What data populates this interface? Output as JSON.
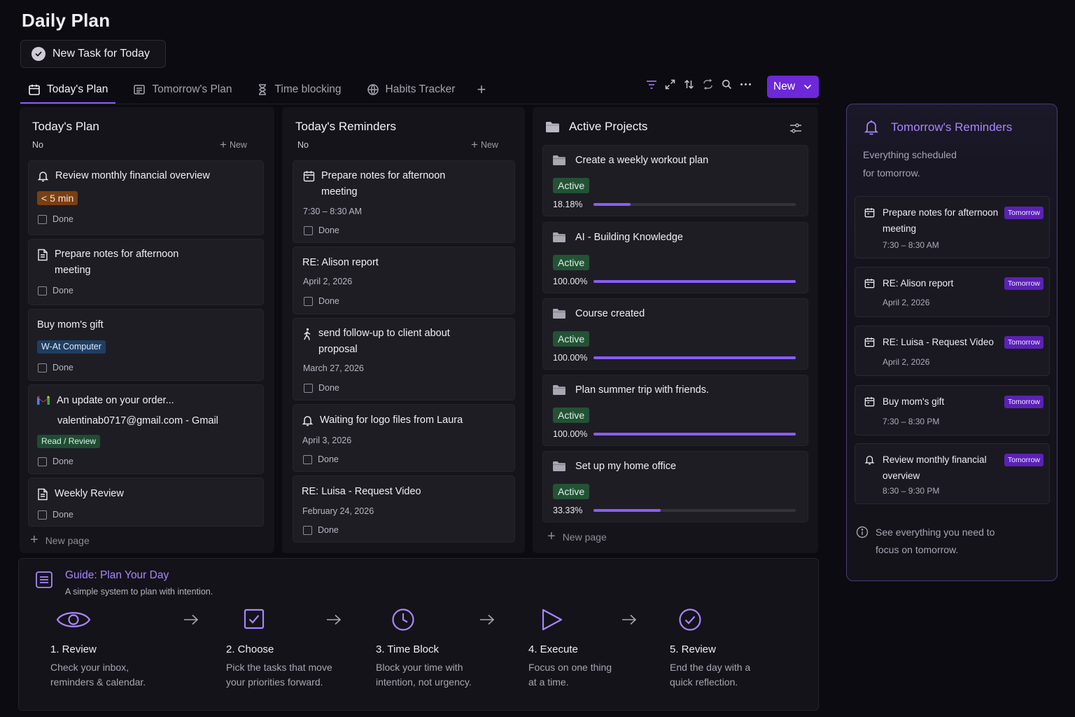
{
  "page": {
    "title": "Daily Plan",
    "new_task_button": "New Task for Today"
  },
  "tabs": [
    {
      "label": "Today's Plan",
      "icon": "calendar-icon",
      "active": true
    },
    {
      "label": "Tomorrow's Plan",
      "icon": "list-icon",
      "active": false
    },
    {
      "label": "Time blocking",
      "icon": "hourglass-icon",
      "active": false
    },
    {
      "label": "Habits Tracker",
      "icon": "globe-icon",
      "active": false
    }
  ],
  "toolbar": {
    "icons": [
      "filter-icon",
      "expand-icon",
      "sort-icon",
      "sync-icon",
      "search-icon",
      "more-icon"
    ],
    "new_button": "New"
  },
  "todays_plan": {
    "title": "Today's Plan",
    "group": "No",
    "new_label": "New",
    "done_label": "Done",
    "new_page_label": "New page",
    "items": [
      {
        "title": "Review monthly financial overview",
        "icon": "bell-icon",
        "badge": "< 5 min"
      },
      {
        "title_line1": "Prepare notes for afternoon",
        "title_line2": "meeting",
        "icon": "document-icon"
      },
      {
        "title": "Buy mom's gift",
        "badge": "W-At Computer"
      },
      {
        "title": "An update on your order...",
        "subtitle": "valentinab0717@gmail.com - Gmail",
        "icon": "gmail-icon",
        "badge": "Read / Review"
      },
      {
        "title": "Weekly Review",
        "icon": "document-icon"
      }
    ]
  },
  "todays_reminders": {
    "title": "Today's Reminders",
    "group": "No",
    "new_label": "New",
    "done_label": "Done",
    "items": [
      {
        "title_line1": "Prepare notes for afternoon",
        "title_line2": "meeting",
        "meta": "7:30 – 8:30 AM",
        "icon": "calendar-icon"
      },
      {
        "title": "RE:  Alison report",
        "meta": "April 2, 2026"
      },
      {
        "title_line1": "send follow-up to client about",
        "title_line2": "proposal",
        "meta": "March 27, 2026",
        "icon": "walking-icon"
      },
      {
        "title": "Waiting for logo files from Laura",
        "meta": "April 3, 2026",
        "icon": "bell-icon"
      },
      {
        "title": "RE:  Luisa - Request Video",
        "meta": "February 24, 2026"
      }
    ]
  },
  "active_projects": {
    "title": "Active Projects",
    "new_page_label": "New page",
    "items": [
      {
        "title": "Create a weekly workout plan",
        "status": "Active",
        "progress_label": "18.18%",
        "progress": 0.1818
      },
      {
        "title": "AI - Building Knowledge",
        "status": "Active",
        "progress_label": "100.00%",
        "progress": 1.0
      },
      {
        "title": "Course created",
        "status": "Active",
        "progress_label": "100.00%",
        "progress": 1.0
      },
      {
        "title": "Plan summer trip with friends.",
        "status": "Active",
        "progress_label": "100.00%",
        "progress": 1.0
      },
      {
        "title": "Set up my home office",
        "status": "Active",
        "progress_label": "33.33%",
        "progress": 0.3333
      }
    ]
  },
  "tomorrow_reminders": {
    "title": "Tomorrow's Reminders",
    "desc_line1": "Everything scheduled",
    "desc_line2": "for tomorrow.",
    "badge": "Tomorrow",
    "items": [
      {
        "title_line1": "Prepare notes for afternoon",
        "title_line2": "meeting",
        "meta": "7:30 – 8:30 AM",
        "icon": "calendar-icon"
      },
      {
        "title": "RE: Alison report",
        "meta": "April 2, 2026",
        "icon": "calendar-icon"
      },
      {
        "title": "RE: Luisa - Request Video",
        "meta": "April 2, 2026",
        "icon": "calendar-icon"
      },
      {
        "title": "Buy mom's gift",
        "meta": "7:30 – 8:30 PM",
        "icon": "calendar-icon"
      },
      {
        "title_line1": "Review monthly financial",
        "title_line2": "overview",
        "meta": "8:30 – 9:30 PM",
        "icon": "bell-icon"
      }
    ],
    "footer_line1": "See everything you need to",
    "footer_line2": "focus on tomorrow."
  },
  "guide": {
    "title": "Guide: Plan Your Day",
    "subtitle": "A simple system to plan with intention.",
    "accent": "#a985ff",
    "steps": [
      {
        "title": "1. Review",
        "desc_line1": "Check your inbox,",
        "desc_line2": "reminders & calendar.",
        "icon": "eye-icon"
      },
      {
        "title": "2. Choose",
        "desc_line1": "Pick the tasks that move",
        "desc_line2": "your priorities forward.",
        "icon": "checkbox-icon"
      },
      {
        "title": "3. Time Block",
        "desc_line1": "Block your time with",
        "desc_line2": "intention, not urgency.",
        "icon": "clock-icon"
      },
      {
        "title": "4. Execute",
        "desc_line1": "Focus on one thing",
        "desc_line2": "at a time.",
        "icon": "play-icon"
      },
      {
        "title": "5. Review",
        "desc_line1": "End the day with a",
        "desc_line2": "quick reflection.",
        "icon": "check-circle-icon"
      }
    ]
  }
}
